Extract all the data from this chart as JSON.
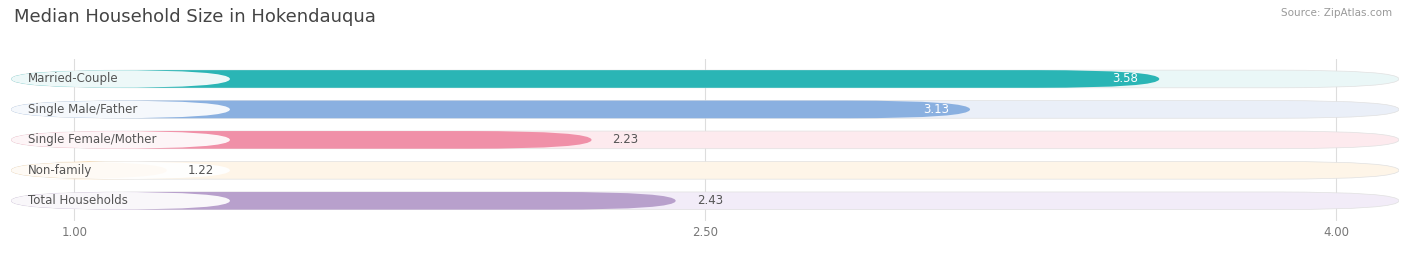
{
  "title": "Median Household Size in Hokendauqua",
  "source": "Source: ZipAtlas.com",
  "categories": [
    "Married-Couple",
    "Single Male/Father",
    "Single Female/Mother",
    "Non-family",
    "Total Households"
  ],
  "values": [
    3.58,
    3.13,
    2.23,
    1.22,
    2.43
  ],
  "bar_colors": [
    "#2ab5b5",
    "#8ab0e0",
    "#f090a8",
    "#f5c98a",
    "#b8a0cc"
  ],
  "bar_bg_colors": [
    "#eaf7f7",
    "#eaeff8",
    "#fdeaee",
    "#fef5e8",
    "#f2ecf8"
  ],
  "label_bg_color": "#ffffff",
  "xlim": [
    0.85,
    4.15
  ],
  "xticks": [
    1.0,
    2.5,
    4.0
  ],
  "label_fontsize": 8.5,
  "value_fontsize": 8.5,
  "title_fontsize": 13,
  "bar_height": 0.58,
  "background_color": "#ffffff",
  "grid_color": "#dddddd",
  "text_color_dark": "#555555",
  "text_color_light": "#ffffff"
}
